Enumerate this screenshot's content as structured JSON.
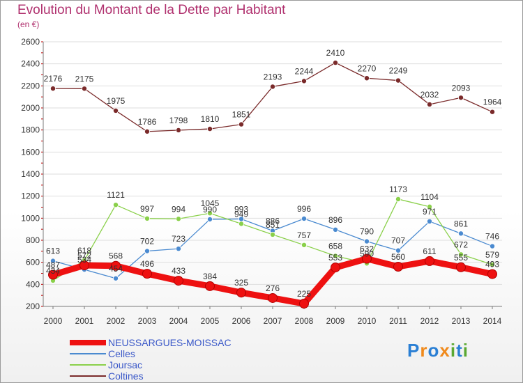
{
  "header": {
    "title": "Evolution du Montant de la Dette par Habitant",
    "subtitle": "(en €)"
  },
  "logo": {
    "text": "Proxiti"
  },
  "colors": {
    "title": "#b0306e",
    "axis": "#7a7a7a",
    "grid": "#dedede",
    "legend_text": "#3a58c8"
  },
  "chart_data": {
    "type": "line",
    "title": "Evolution du Montant de la Dette par Habitant",
    "subtitle": "(en €)",
    "xlabel": "",
    "ylabel": "",
    "ylim": [
      200,
      2600
    ],
    "yticks": [
      200,
      400,
      600,
      800,
      1000,
      1200,
      1400,
      1600,
      1800,
      2000,
      2200,
      2400,
      2600
    ],
    "categories": [
      "2000",
      "2001",
      "2002",
      "2003",
      "2004",
      "2005",
      "2006",
      "2007",
      "2008",
      "2009",
      "2010",
      "2011",
      "2012",
      "2013",
      "2014"
    ],
    "grid": "horizontal",
    "legend_position": "bottom-left",
    "series": [
      {
        "name": "Coltines",
        "color": "#7a2a2a",
        "values": [
          2176,
          2175,
          1975,
          1786,
          1798,
          1810,
          1851,
          2193,
          2244,
          2410,
          2270,
          2249,
          2032,
          2093,
          1964
        ]
      },
      {
        "name": "Celles",
        "color": "#4a8ad0",
        "values": [
          613,
          534,
          454,
          702,
          723,
          990,
          993,
          886,
          996,
          896,
          790,
          707,
          971,
          861,
          746
        ]
      },
      {
        "name": "Joursac",
        "color": "#8ad04a",
        "values": [
          434,
          618,
          1121,
          997,
          994,
          1045,
          949,
          851,
          757,
          658,
          590,
          1173,
          1104,
          672,
          579
        ]
      },
      {
        "name": "NEUSSARGUES-MOISSAC",
        "color": "#ee1111",
        "values": [
          487,
          572,
          568,
          496,
          433,
          384,
          325,
          276,
          225,
          553,
          632,
          560,
          611,
          555,
          493
        ]
      }
    ],
    "labels": {
      "Coltines": [
        "2176",
        "2175",
        "1975",
        "1786",
        "1798",
        "1810",
        "1851",
        "2193",
        "2244",
        "2410",
        "2270",
        "2249",
        "2032",
        "2093",
        "1964"
      ],
      "Celles": [
        "613",
        "534",
        "454",
        "702",
        "723",
        "990",
        "993",
        "886",
        "996",
        "896",
        "790",
        "707",
        "971",
        "861",
        "746"
      ],
      "Joursac": [
        "434",
        "618",
        "1121",
        "997",
        "994",
        "1045",
        "949",
        "851",
        "757",
        "658",
        "590",
        "1173",
        "1104",
        "672",
        "579"
      ],
      "NEUSSARGUES-MOISSAC": [
        "487",
        "572",
        "568",
        "496",
        "433",
        "384",
        "325",
        "276",
        "225",
        "553",
        "632",
        "560",
        "611",
        "555",
        "493"
      ]
    }
  },
  "legend": [
    {
      "label": "NEUSSARGUES-MOISSAC",
      "color": "#ee1111",
      "width_px_hint": "thick"
    },
    {
      "label": "Celles",
      "color": "#4a8ad0",
      "width_px_hint": "thin"
    },
    {
      "label": "Joursac",
      "color": "#8ad04a",
      "width_px_hint": "thin"
    },
    {
      "label": "Coltines",
      "color": "#7a2a2a",
      "width_px_hint": "thin"
    }
  ]
}
